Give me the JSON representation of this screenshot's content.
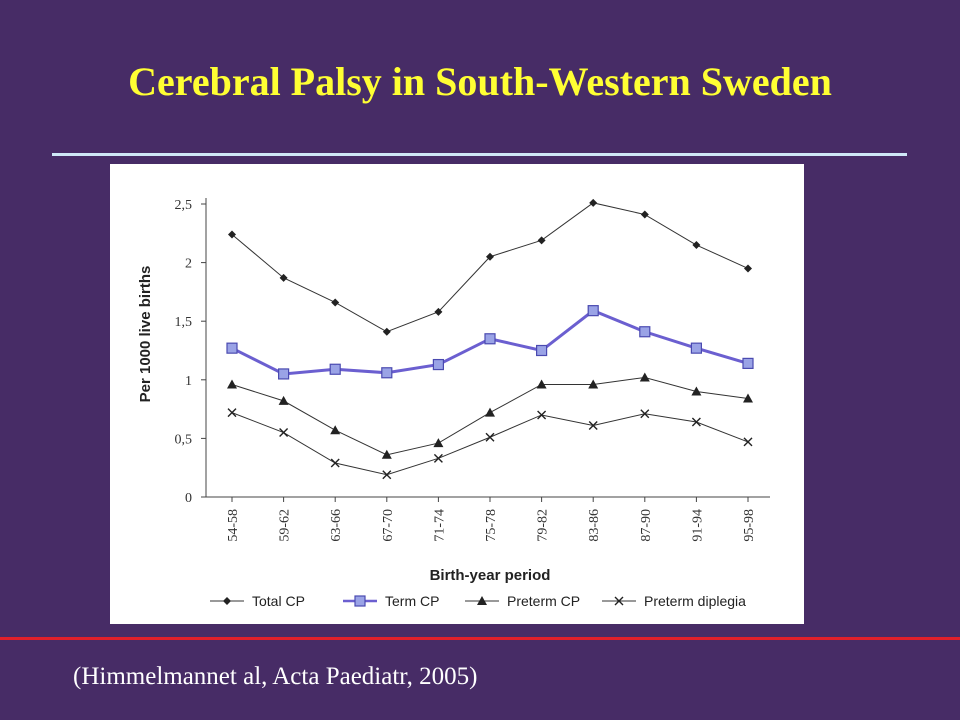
{
  "slide": {
    "title": "Cerebral Palsy in South-Western Sweden",
    "citation": "(Himmelmannet al, Acta Paediatr, 2005)",
    "colors": {
      "background": "#472c66",
      "title": "#ffff33",
      "title_rule": "#cfe8f7",
      "bottom_rule": "#e0202a",
      "term_cp_line": "#6b5fd0"
    }
  },
  "chart_data": {
    "type": "line",
    "title": "",
    "xlabel": "Birth-year period",
    "ylabel": "Per 1000 live births",
    "categories": [
      "54-58",
      "59-62",
      "63-66",
      "67-70",
      "71-74",
      "75-78",
      "79-82",
      "83-86",
      "87-90",
      "91-94",
      "95-98"
    ],
    "ylim": [
      0,
      2.5
    ],
    "yticks": [
      "0",
      "0,5",
      "1",
      "1,5",
      "2",
      "2,5"
    ],
    "yticks_values": [
      0,
      0.5,
      1,
      1.5,
      2,
      2.5
    ],
    "grid": false,
    "legend_position": "bottom",
    "series": [
      {
        "name": "Total CP",
        "marker": "diamond",
        "color": "#333333",
        "values": [
          2.24,
          1.87,
          1.66,
          1.41,
          1.58,
          2.05,
          2.19,
          2.51,
          2.41,
          2.15,
          1.95
        ]
      },
      {
        "name": "Term CP",
        "marker": "square",
        "color": "#6b5fd0",
        "values": [
          1.27,
          1.05,
          1.09,
          1.06,
          1.13,
          1.35,
          1.25,
          1.59,
          1.41,
          1.27,
          1.14
        ]
      },
      {
        "name": "Preterm CP",
        "marker": "triangle",
        "color": "#333333",
        "values": [
          0.96,
          0.82,
          0.57,
          0.36,
          0.46,
          0.72,
          0.96,
          0.96,
          1.02,
          0.9,
          0.84
        ]
      },
      {
        "name": "Preterm diplegia",
        "marker": "x",
        "color": "#333333",
        "values": [
          0.72,
          0.55,
          0.29,
          0.19,
          0.33,
          0.51,
          0.7,
          0.61,
          0.71,
          0.64,
          0.47
        ]
      }
    ]
  }
}
